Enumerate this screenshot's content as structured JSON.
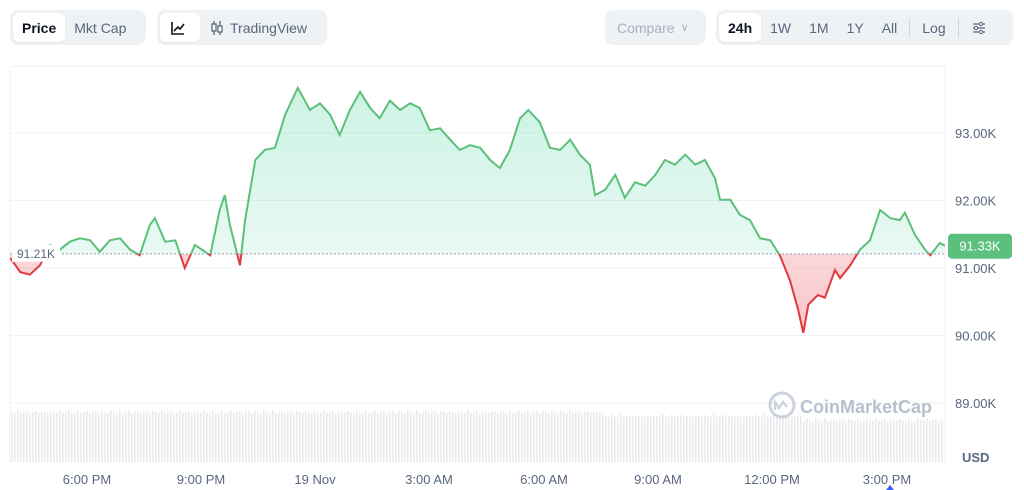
{
  "toolbar": {
    "view_tabs": [
      "Price",
      "Mkt Cap"
    ],
    "active_view": "Price",
    "line_chart_icon": "line-chart-icon",
    "tradingview_icon": "candlestick-icon",
    "tradingview_label": "TradingView",
    "compare_label": "Compare",
    "ranges": [
      "24h",
      "1W",
      "1M",
      "1Y",
      "All"
    ],
    "active_range": "24h",
    "log_label": "Log",
    "settings_icon": "sliders-icon"
  },
  "colors": {
    "up": "#16c784",
    "line_up": "#5cbf7a",
    "line_down": "#e0393e",
    "price_tag": "#5bbf7d"
  },
  "watermark": "CoinMarketCap",
  "chart_data": {
    "type": "area",
    "currency": "USD",
    "y_unit_label": "USD",
    "ylim": [
      88.5,
      93.95
    ],
    "y_ticks": [
      "93.00K",
      "92.00K",
      "91.00K",
      "90.00K",
      "89.00K"
    ],
    "y_tick_values": [
      93,
      92,
      91,
      90,
      89
    ],
    "x_ticks": [
      "6:00 PM",
      "9:00 PM",
      "19 Nov",
      "3:00 AM",
      "6:00 AM",
      "9:00 AM",
      "12:00 PM",
      "3:00 PM"
    ],
    "baseline": {
      "value": 91.21,
      "label": "91.21K"
    },
    "current": {
      "value": 91.33,
      "label": "91.33K"
    },
    "grid": "horizontal",
    "price_unit": "K USD",
    "points": [
      [
        "15:59",
        91.15
      ],
      [
        "16:15",
        90.94
      ],
      [
        "16:30",
        90.9
      ],
      [
        "16:46",
        91.04
      ],
      [
        "17:02",
        91.34
      ],
      [
        "17:17",
        91.27
      ],
      [
        "17:33",
        91.39
      ],
      [
        "17:49",
        91.44
      ],
      [
        "18:05",
        91.41
      ],
      [
        "18:20",
        91.24
      ],
      [
        "18:36",
        91.41
      ],
      [
        "18:52",
        91.44
      ],
      [
        "19:08",
        91.27
      ],
      [
        "19:23",
        91.19
      ],
      [
        "19:39",
        91.64
      ],
      [
        "19:47",
        91.74
      ],
      [
        "20:03",
        91.39
      ],
      [
        "20:19",
        91.41
      ],
      [
        "20:34",
        91.0
      ],
      [
        "20:50",
        91.34
      ],
      [
        "21:14",
        91.19
      ],
      [
        "21:29",
        91.86
      ],
      [
        "21:37",
        92.08
      ],
      [
        "21:45",
        91.64
      ],
      [
        "22:01",
        91.04
      ],
      [
        "22:09",
        91.71
      ],
      [
        "22:25",
        92.6
      ],
      [
        "22:40",
        92.75
      ],
      [
        "22:56",
        92.78
      ],
      [
        "23:12",
        93.27
      ],
      [
        "23:32",
        93.67
      ],
      [
        "23:51",
        93.34
      ],
      [
        "00:07",
        93.44
      ],
      [
        "00:23",
        93.27
      ],
      [
        "00:38",
        92.97
      ],
      [
        "00:54",
        93.34
      ],
      [
        "01:10",
        93.61
      ],
      [
        "01:26",
        93.37
      ],
      [
        "01:41",
        93.22
      ],
      [
        "01:57",
        93.48
      ],
      [
        "02:13",
        93.34
      ],
      [
        "02:29",
        93.44
      ],
      [
        "02:44",
        93.37
      ],
      [
        "03:00",
        93.04
      ],
      [
        "03:16",
        93.07
      ],
      [
        "03:32",
        92.9
      ],
      [
        "03:47",
        92.75
      ],
      [
        "04:03",
        92.82
      ],
      [
        "04:19",
        92.78
      ],
      [
        "04:35",
        92.6
      ],
      [
        "04:50",
        92.48
      ],
      [
        "05:06",
        92.75
      ],
      [
        "05:22",
        93.22
      ],
      [
        "05:35",
        93.34
      ],
      [
        "05:53",
        93.16
      ],
      [
        "06:09",
        92.78
      ],
      [
        "06:25",
        92.75
      ],
      [
        "06:41",
        92.9
      ],
      [
        "06:56",
        92.68
      ],
      [
        "07:12",
        92.53
      ],
      [
        "07:20",
        92.08
      ],
      [
        "07:36",
        92.16
      ],
      [
        "07:52",
        92.38
      ],
      [
        "08:07",
        92.04
      ],
      [
        "08:23",
        92.27
      ],
      [
        "08:39",
        92.22
      ],
      [
        "08:55",
        92.38
      ],
      [
        "09:10",
        92.6
      ],
      [
        "09:26",
        92.53
      ],
      [
        "09:42",
        92.68
      ],
      [
        "09:58",
        92.53
      ],
      [
        "10:13",
        92.6
      ],
      [
        "10:29",
        92.33
      ],
      [
        "10:37",
        92.01
      ],
      [
        "10:53",
        92.01
      ],
      [
        "11:08",
        91.79
      ],
      [
        "11:24",
        91.71
      ],
      [
        "11:40",
        91.44
      ],
      [
        "11:56",
        91.41
      ],
      [
        "12:11",
        91.19
      ],
      [
        "12:27",
        90.82
      ],
      [
        "12:40",
        90.38
      ],
      [
        "12:48",
        90.04
      ],
      [
        "12:56",
        90.46
      ],
      [
        "13:11",
        90.6
      ],
      [
        "13:22",
        90.56
      ],
      [
        "13:38",
        90.97
      ],
      [
        "13:46",
        90.85
      ],
      [
        "14:02",
        91.04
      ],
      [
        "14:17",
        91.27
      ],
      [
        "14:33",
        91.41
      ],
      [
        "14:49",
        91.86
      ],
      [
        "15:05",
        91.74
      ],
      [
        "15:20",
        91.71
      ],
      [
        "15:28",
        91.82
      ],
      [
        "15:44",
        91.49
      ],
      [
        "16:00",
        91.27
      ],
      [
        "16:08",
        91.19
      ],
      [
        "16:23",
        91.37
      ],
      [
        "16:31",
        91.33
      ]
    ]
  }
}
